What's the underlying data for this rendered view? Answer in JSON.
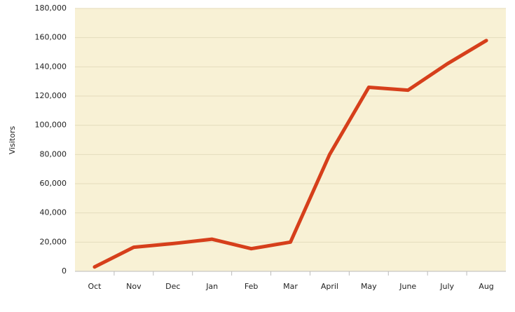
{
  "chart_data": {
    "type": "line",
    "y_label": "Visitors",
    "categories": [
      "Oct",
      "Nov",
      "Dec",
      "Jan",
      "Feb",
      "Mar",
      "April",
      "May",
      "June",
      "July",
      "Aug"
    ],
    "values": [
      3000,
      16500,
      19000,
      22000,
      15500,
      20000,
      80000,
      126000,
      124000,
      142000,
      158000
    ],
    "color": "#d63f1b",
    "ylim": [
      0,
      180000
    ],
    "yticks": [
      0,
      {
        "value": 20000,
        "label": "20,000"
      },
      {
        "value": 40000,
        "label": "40,000"
      },
      {
        "value": 60000,
        "label": "60,000"
      },
      {
        "value": 80000,
        "label": "80,000"
      },
      {
        "value": 100000,
        "label": "100,000"
      },
      {
        "value": 120000,
        "label": "120,000"
      },
      {
        "value": 140000,
        "label": "140,000"
      },
      {
        "value": 160000,
        "label": "160,000"
      },
      {
        "value": 180000,
        "label": "180,000"
      }
    ],
    "grid": true
  }
}
